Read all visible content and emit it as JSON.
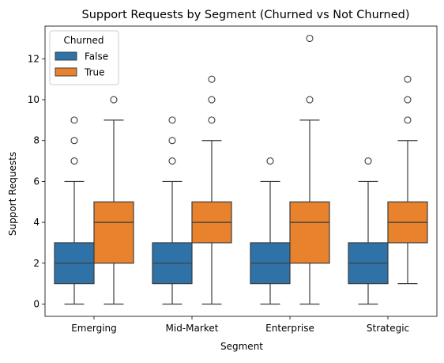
{
  "chart_data": {
    "type": "box",
    "title": "Support Requests by Segment (Churned vs Not Churned)",
    "xlabel": "Segment",
    "ylabel": "Support Requests",
    "ylim": [
      -0.6,
      13.6
    ],
    "yticks": [
      0,
      2,
      4,
      6,
      8,
      10,
      12
    ],
    "categories": [
      "Emerging",
      "Mid-Market",
      "Enterprise",
      "Strategic"
    ],
    "legend": {
      "title": "Churned",
      "position": "top-left"
    },
    "colors": {
      "False": "#2e72a8",
      "True": "#e9822c",
      "line": "#3d3d3d"
    },
    "series": [
      {
        "name": "False",
        "boxes": [
          {
            "whislo": 0,
            "q1": 1,
            "med": 2,
            "q3": 3,
            "whishi": 6,
            "fliers": [
              7,
              8,
              9
            ]
          },
          {
            "whislo": 0,
            "q1": 1,
            "med": 2,
            "q3": 3,
            "whishi": 6,
            "fliers": [
              7,
              8,
              9
            ]
          },
          {
            "whislo": 0,
            "q1": 1,
            "med": 2,
            "q3": 3,
            "whishi": 6,
            "fliers": [
              7
            ]
          },
          {
            "whislo": 0,
            "q1": 1,
            "med": 2,
            "q3": 3,
            "whishi": 6,
            "fliers": [
              7
            ]
          }
        ]
      },
      {
        "name": "True",
        "boxes": [
          {
            "whislo": 0,
            "q1": 2,
            "med": 4,
            "q3": 5,
            "whishi": 9,
            "fliers": [
              10
            ]
          },
          {
            "whislo": 0,
            "q1": 3,
            "med": 4,
            "q3": 5,
            "whishi": 8,
            "fliers": [
              9,
              10,
              11
            ]
          },
          {
            "whislo": 0,
            "q1": 2,
            "med": 4,
            "q3": 5,
            "whishi": 9,
            "fliers": [
              10,
              13
            ]
          },
          {
            "whislo": 1,
            "q1": 3,
            "med": 4,
            "q3": 5,
            "whishi": 8,
            "fliers": [
              9,
              10,
              11
            ]
          }
        ]
      }
    ]
  }
}
